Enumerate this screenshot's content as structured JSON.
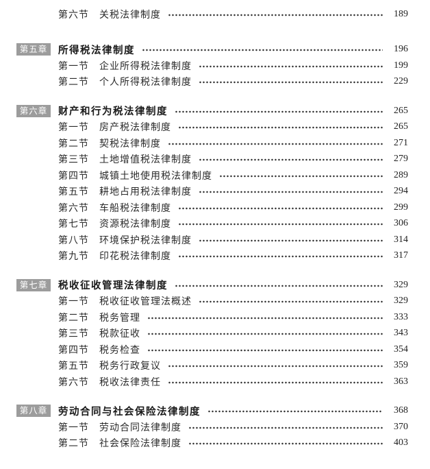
{
  "document": {
    "kind": "book-table-of-contents",
    "colors": {
      "page_bg": "#ffffff",
      "badge_bg": "#9c9c9c",
      "badge_text": "#ffffff",
      "chapter_title": "#1a1a1a",
      "section_text": "#2b2b2b",
      "page_number": "#1f1f1f",
      "dot": "#2e2e2e"
    },
    "toc": {
      "groups": [
        {
          "chapter": null,
          "sections": [
            {
              "label": "第六节",
              "title": "关税法律制度",
              "page": "189"
            }
          ]
        },
        {
          "chapter": {
            "badge": "第五章",
            "title": "所得税法律制度",
            "page": "196"
          },
          "sections": [
            {
              "label": "第一节",
              "title": "企业所得税法律制度",
              "page": "199"
            },
            {
              "label": "第二节",
              "title": "个人所得税法律制度",
              "page": "229"
            }
          ]
        },
        {
          "chapter": {
            "badge": "第六章",
            "title": "财产和行为税法律制度",
            "page": "265"
          },
          "sections": [
            {
              "label": "第一节",
              "title": "房产税法律制度",
              "page": "265"
            },
            {
              "label": "第二节",
              "title": "契税法律制度",
              "page": "271"
            },
            {
              "label": "第三节",
              "title": "土地增值税法律制度",
              "page": "279"
            },
            {
              "label": "第四节",
              "title": "城镇土地使用税法律制度",
              "page": "289"
            },
            {
              "label": "第五节",
              "title": "耕地占用税法律制度",
              "page": "294"
            },
            {
              "label": "第六节",
              "title": "车船税法律制度",
              "page": "299"
            },
            {
              "label": "第七节",
              "title": "资源税法律制度",
              "page": "306"
            },
            {
              "label": "第八节",
              "title": "环境保护税法律制度",
              "page": "314"
            },
            {
              "label": "第九节",
              "title": "印花税法律制度",
              "page": "317"
            }
          ]
        },
        {
          "chapter": {
            "badge": "第七章",
            "title": "税收征收管理法律制度",
            "page": "329"
          },
          "sections": [
            {
              "label": "第一节",
              "title": "税收征收管理法概述",
              "page": "329"
            },
            {
              "label": "第二节",
              "title": "税务管理",
              "page": "333"
            },
            {
              "label": "第三节",
              "title": "税款征收",
              "page": "343"
            },
            {
              "label": "第四节",
              "title": "税务检查",
              "page": "354"
            },
            {
              "label": "第五节",
              "title": "税务行政复议",
              "page": "359"
            },
            {
              "label": "第六节",
              "title": "税收法律责任",
              "page": "363"
            }
          ]
        },
        {
          "chapter": {
            "badge": "第八章",
            "title": "劳动合同与社会保险法律制度",
            "page": "368"
          },
          "sections": [
            {
              "label": "第一节",
              "title": "劳动合同法律制度",
              "page": "370"
            },
            {
              "label": "第二节",
              "title": "社会保险法律制度",
              "page": "403"
            }
          ]
        }
      ]
    }
  }
}
